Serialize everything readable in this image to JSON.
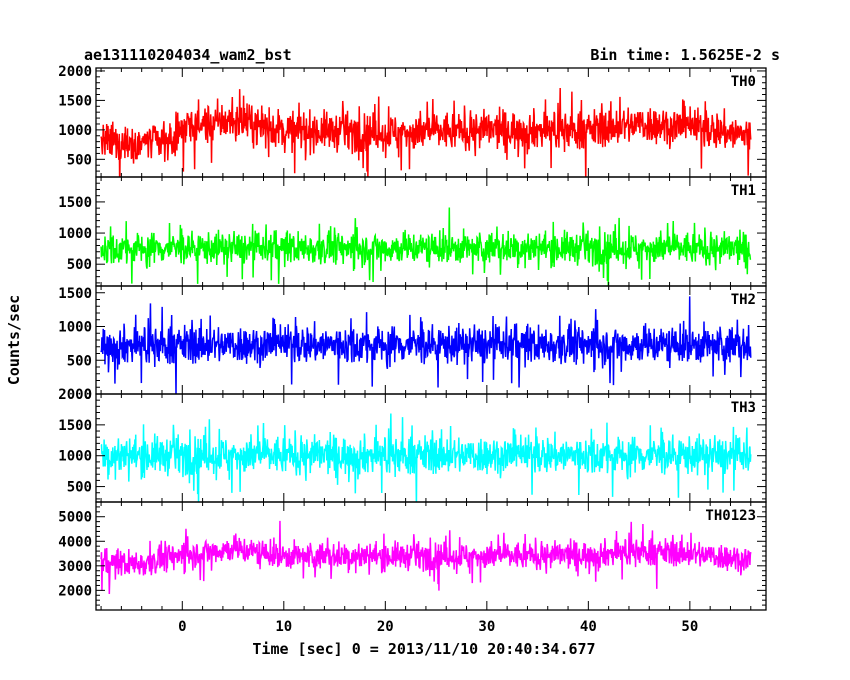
{
  "chart_data": {
    "type": "line",
    "title": "ae131110204034_wam2_bst",
    "subtitle": "Bin time: 1.5625E-2 s",
    "xlabel": "Time [sec] 0 = 2013/11/10 20:40:34.677",
    "ylabel": "Counts/sec",
    "xlim": [
      -8.5,
      57.5
    ],
    "data_xrange": [
      -8.0,
      56.0
    ],
    "bin_time": 0.015625,
    "x_ticks": [
      0,
      10,
      20,
      30,
      40,
      50
    ],
    "x_tick_labels": [
      "0",
      "10",
      "20",
      "30",
      "40",
      "50"
    ],
    "grid": false,
    "legend": "none",
    "panels": [
      {
        "name": "TH0",
        "color": "#ff0000",
        "ylim": [
          200,
          2050
        ],
        "y_ticks": [
          500,
          1000,
          1500,
          2000
        ],
        "y_tick_labels": [
          "500",
          "1000",
          "1500",
          "2000"
        ],
        "profile_x": [
          -8,
          -1,
          0,
          5,
          10,
          20,
          30,
          40,
          45,
          50,
          56
        ],
        "profile_mean": [
          780,
          800,
          1050,
          1150,
          1000,
          950,
          1000,
          1000,
          1100,
          1050,
          900
        ],
        "spread": 380
      },
      {
        "name": "TH1",
        "color": "#00ff00",
        "ylim": [
          150,
          1900
        ],
        "y_ticks": [
          500,
          1000,
          1500
        ],
        "y_tick_labels": [
          "500",
          "1000",
          "1500"
        ],
        "profile_x": [
          -8,
          0,
          10,
          20,
          30,
          40,
          50,
          56
        ],
        "profile_mean": [
          750,
          760,
          760,
          760,
          760,
          760,
          760,
          740
        ],
        "spread": 300
      },
      {
        "name": "TH2",
        "color": "#0000ff",
        "ylim": [
          0,
          1600
        ],
        "y_ticks": [
          0,
          500,
          1000,
          1500
        ],
        "y_tick_labels": [
          "0",
          "500",
          "1000",
          "1500"
        ],
        "profile_x": [
          -8,
          0,
          10,
          20,
          30,
          40,
          50,
          56
        ],
        "profile_mean": [
          720,
          730,
          730,
          730,
          730,
          730,
          730,
          720
        ],
        "spread": 330
      },
      {
        "name": "TH3",
        "color": "#00ffff",
        "ylim": [
          250,
          2000
        ],
        "y_ticks": [
          500,
          1000,
          1500,
          2000
        ],
        "y_tick_labels": [
          "500",
          "1000",
          "1500",
          "2000"
        ],
        "profile_x": [
          -8,
          0,
          10,
          20,
          30,
          40,
          50,
          56
        ],
        "profile_mean": [
          1000,
          1010,
          1010,
          1010,
          1010,
          1010,
          1010,
          1000
        ],
        "spread": 360
      },
      {
        "name": "TH0123",
        "color": "#ff00ff",
        "ylim": [
          1200,
          5600
        ],
        "y_ticks": [
          2000,
          3000,
          4000,
          5000
        ],
        "y_tick_labels": [
          "2000",
          "3000",
          "4000",
          "5000"
        ],
        "profile_x": [
          -8,
          -4,
          0,
          5,
          10,
          20,
          30,
          40,
          45,
          50,
          56
        ],
        "profile_mean": [
          3100,
          3100,
          3450,
          3700,
          3400,
          3400,
          3400,
          3450,
          3600,
          3500,
          3250
        ],
        "spread": 650
      }
    ]
  }
}
